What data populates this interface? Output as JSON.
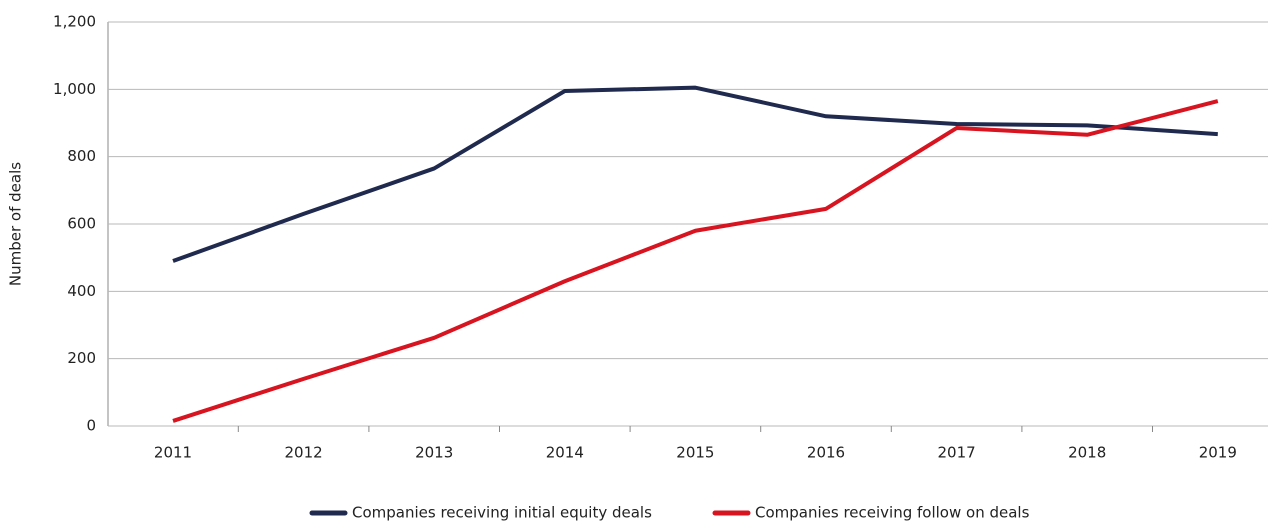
{
  "chart_data": {
    "type": "line",
    "y_label": "Number of deals",
    "categories": [
      "2011",
      "2012",
      "2013",
      "2014",
      "2015",
      "2016",
      "2017",
      "2018",
      "2019"
    ],
    "series": [
      {
        "name": "Companies receiving initial equity deals",
        "color": "#1f2a4e",
        "values": [
          490,
          630,
          765,
          995,
          1005,
          920,
          897,
          893,
          867
        ]
      },
      {
        "name": "Companies receiving follow on deals",
        "color": "#d7141f",
        "values": [
          15,
          140,
          262,
          430,
          580,
          645,
          885,
          865,
          965
        ]
      }
    ],
    "ylim": [
      0,
      1200
    ],
    "yticks": [
      0,
      200,
      400,
      600,
      800,
      {
        "value": 1000,
        "label": "1,000"
      },
      {
        "value": 1200,
        "label": "1,200"
      }
    ],
    "grid": true,
    "legend": "bottom"
  }
}
